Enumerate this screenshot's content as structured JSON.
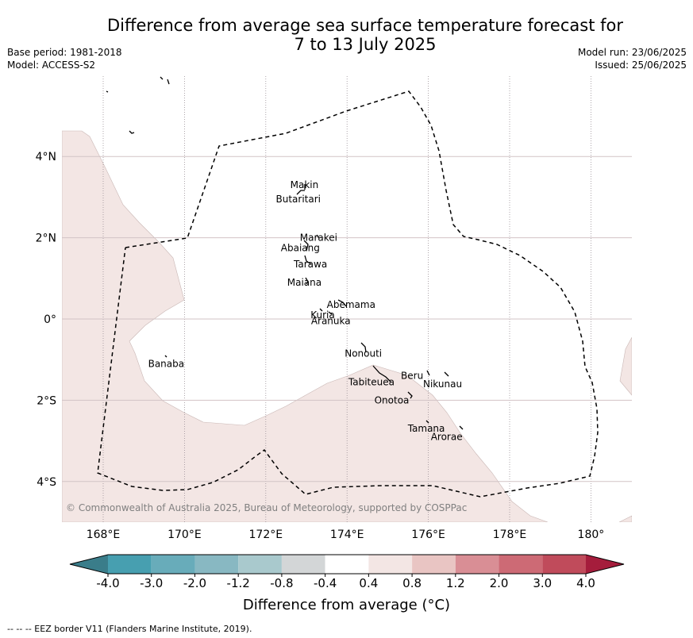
{
  "title": {
    "line1": "Difference from average sea surface temperature forecast for",
    "line2": "7 to 13 July 2025"
  },
  "meta": {
    "base_period": "Base period: 1981-2018",
    "model": "Model: ACCESS-S2",
    "model_run": "Model run: 23/06/2025",
    "issued": "Issued: 25/06/2025"
  },
  "map": {
    "lon_range": [
      167,
      181
    ],
    "lat_range": [
      -5,
      6
    ],
    "lon_ticks": [
      {
        "value": 168,
        "label": "168°E"
      },
      {
        "value": 170,
        "label": "170°E"
      },
      {
        "value": 172,
        "label": "172°E"
      },
      {
        "value": 174,
        "label": "174°E"
      },
      {
        "value": 176,
        "label": "176°E"
      },
      {
        "value": 178,
        "label": "178°E"
      },
      {
        "value": 180,
        "label": "180°"
      }
    ],
    "lat_ticks": [
      {
        "value": 4,
        "label": "4°N"
      },
      {
        "value": 2,
        "label": "2°N"
      },
      {
        "value": 0,
        "label": "0°"
      },
      {
        "value": -2,
        "label": "2°S"
      },
      {
        "value": -4,
        "label": "4°S"
      }
    ],
    "places": [
      {
        "name": "Makin",
        "lon": 172.95,
        "lat": 3.3
      },
      {
        "name": "Butaritari",
        "lon": 172.8,
        "lat": 2.95
      },
      {
        "name": "Marakei",
        "lon": 173.3,
        "lat": 2.0
      },
      {
        "name": "Abaiang",
        "lon": 172.85,
        "lat": 1.75
      },
      {
        "name": "Tarawa",
        "lon": 173.1,
        "lat": 1.35
      },
      {
        "name": "Maiana",
        "lon": 172.95,
        "lat": 0.9
      },
      {
        "name": "Abemama",
        "lon": 174.1,
        "lat": 0.35
      },
      {
        "name": "Kuria",
        "lon": 173.4,
        "lat": 0.1
      },
      {
        "name": "Aranuka",
        "lon": 173.6,
        "lat": -0.05
      },
      {
        "name": "Banaba",
        "lon": 169.55,
        "lat": -1.1
      },
      {
        "name": "Nonouti",
        "lon": 174.4,
        "lat": -0.85
      },
      {
        "name": "Tabiteuea",
        "lon": 174.6,
        "lat": -1.55
      },
      {
        "name": "Beru",
        "lon": 175.6,
        "lat": -1.4
      },
      {
        "name": "Nikunau",
        "lon": 176.35,
        "lat": -1.6
      },
      {
        "name": "Onotoa",
        "lon": 175.1,
        "lat": -2.0
      },
      {
        "name": "Tamana",
        "lon": 175.95,
        "lat": -2.7
      },
      {
        "name": "Arorae",
        "lon": 176.45,
        "lat": -2.9
      }
    ],
    "copyright": "© Commonwealth of Australia 2025, Bureau of Meteorology, supported by COSPPac",
    "warm_anomaly_color": "#f3e6e4"
  },
  "colorbar": {
    "label": "Difference from average (°C)",
    "ticks": [
      "-4.0",
      "-3.0",
      "-2.0",
      "-1.2",
      "-0.8",
      "-0.4",
      "0.4",
      "0.8",
      "1.2",
      "2.0",
      "3.0",
      "4.0"
    ],
    "under_color": "#3a7d8a",
    "over_color": "#a51d3c",
    "colors": [
      "#479fb0",
      "#68acba",
      "#88b8c2",
      "#a9c9cd",
      "#d3d6d7",
      "#ffffff",
      "#f3e6e4",
      "#e9c5c3",
      "#d98e95",
      "#cd6a75",
      "#c04b5b"
    ]
  },
  "footnote": "--  --  -- EEZ border V11 (Flanders Marine Institute, 2019)."
}
